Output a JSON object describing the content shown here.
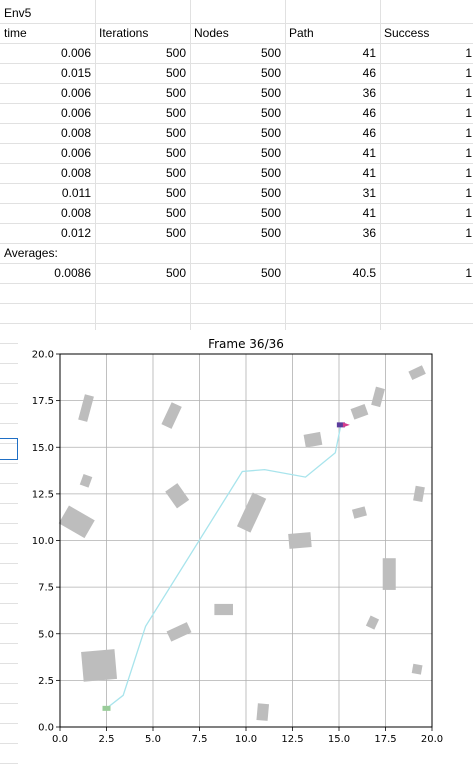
{
  "sheet": {
    "env_label": "Env5",
    "headers": [
      "time",
      "Iterations",
      "Nodes",
      "Path",
      "Success"
    ],
    "rows": [
      [
        "0.006",
        "500",
        "500",
        "41",
        "1"
      ],
      [
        "0.015",
        "500",
        "500",
        "46",
        "1"
      ],
      [
        "0.006",
        "500",
        "500",
        "36",
        "1"
      ],
      [
        "0.006",
        "500",
        "500",
        "46",
        "1"
      ],
      [
        "0.008",
        "500",
        "500",
        "46",
        "1"
      ],
      [
        "0.006",
        "500",
        "500",
        "41",
        "1"
      ],
      [
        "0.008",
        "500",
        "500",
        "41",
        "1"
      ],
      [
        "0.011",
        "500",
        "500",
        "31",
        "1"
      ],
      [
        "0.008",
        "500",
        "500",
        "41",
        "1"
      ],
      [
        "0.012",
        "500",
        "500",
        "36",
        "1"
      ]
    ],
    "averages_label": "Averages:",
    "averages": [
      "0.0086",
      "500",
      "500",
      "40.5",
      "1"
    ]
  },
  "chart_data": {
    "type": "path-plot",
    "title": "Frame 36/36",
    "xlim": [
      0,
      20
    ],
    "ylim": [
      0,
      20
    ],
    "x_ticks": [
      "0.0",
      "2.5",
      "5.0",
      "7.5",
      "10.0",
      "12.5",
      "15.0",
      "17.5",
      "20.0"
    ],
    "y_ticks": [
      "0.0",
      "2.5",
      "5.0",
      "7.5",
      "10.0",
      "12.5",
      "15.0",
      "17.5",
      "20.0"
    ],
    "grid": true,
    "colors": {
      "obstacle": "#bdbdbd",
      "path": "#a8e4ec",
      "start": "#99cc99",
      "goal": "#d63c8c",
      "goal_dark": "#5a3c9c"
    },
    "path": [
      [
        2.5,
        1.0
      ],
      [
        3.4,
        1.7
      ],
      [
        4.6,
        5.4
      ],
      [
        9.8,
        13.7
      ],
      [
        11.0,
        13.8
      ],
      [
        13.2,
        13.4
      ],
      [
        14.8,
        14.7
      ],
      [
        15.1,
        16.2
      ]
    ],
    "start": [
      2.5,
      1.0
    ],
    "goal": [
      15.1,
      16.2
    ],
    "obstacles": [
      {
        "cx": 1.4,
        "cy": 17.1,
        "w": 0.5,
        "h": 1.4,
        "a": 15
      },
      {
        "cx": 6.0,
        "cy": 16.7,
        "w": 0.6,
        "h": 1.3,
        "a": 25
      },
      {
        "cx": 1.4,
        "cy": 13.2,
        "w": 0.5,
        "h": 0.6,
        "a": 20
      },
      {
        "cx": 6.3,
        "cy": 12.4,
        "w": 0.8,
        "h": 1.1,
        "a": -35
      },
      {
        "cx": 0.9,
        "cy": 11.0,
        "w": 1.6,
        "h": 1.1,
        "a": 30
      },
      {
        "cx": 10.3,
        "cy": 11.5,
        "w": 0.8,
        "h": 2.0,
        "a": 25
      },
      {
        "cx": 12.9,
        "cy": 10.0,
        "w": 1.2,
        "h": 0.8,
        "a": -5
      },
      {
        "cx": 13.6,
        "cy": 15.4,
        "w": 0.9,
        "h": 0.7,
        "a": -10
      },
      {
        "cx": 16.1,
        "cy": 16.9,
        "w": 0.8,
        "h": 0.6,
        "a": -20
      },
      {
        "cx": 17.1,
        "cy": 17.7,
        "w": 0.5,
        "h": 1.0,
        "a": 15
      },
      {
        "cx": 19.2,
        "cy": 19.0,
        "w": 0.8,
        "h": 0.5,
        "a": -25
      },
      {
        "cx": 19.3,
        "cy": 12.5,
        "w": 0.5,
        "h": 0.8,
        "a": 10
      },
      {
        "cx": 16.1,
        "cy": 11.5,
        "w": 0.7,
        "h": 0.5,
        "a": -15
      },
      {
        "cx": 17.7,
        "cy": 8.2,
        "w": 0.7,
        "h": 1.7,
        "a": 0
      },
      {
        "cx": 16.8,
        "cy": 5.6,
        "w": 0.5,
        "h": 0.6,
        "a": 25
      },
      {
        "cx": 19.2,
        "cy": 3.1,
        "w": 0.5,
        "h": 0.5,
        "a": 10
      },
      {
        "cx": 8.8,
        "cy": 6.3,
        "w": 1.0,
        "h": 0.6,
        "a": 0
      },
      {
        "cx": 6.4,
        "cy": 5.1,
        "w": 1.2,
        "h": 0.6,
        "a": -25
      },
      {
        "cx": 2.1,
        "cy": 3.3,
        "w": 1.8,
        "h": 1.6,
        "a": -5
      },
      {
        "cx": 10.9,
        "cy": 0.8,
        "w": 0.6,
        "h": 0.9,
        "a": 5
      }
    ]
  }
}
